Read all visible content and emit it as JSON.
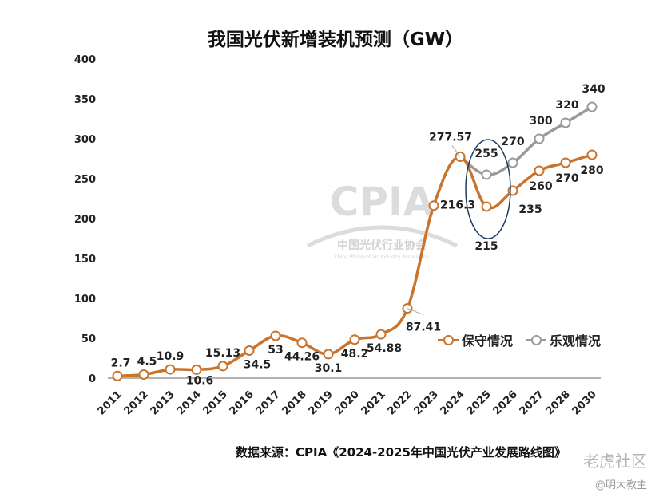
{
  "title": "我国光伏新增装机预测（GW）",
  "source": "数据来源：CPIA《2024-2025年中国光伏产业发展路线图》",
  "watermark": {
    "brand": "CPIA",
    "org": "中国光伏行业协会",
    "org_en": "China Photovoltaic Industry Association",
    "site": "老虎社区",
    "user": "@明大教主"
  },
  "colors": {
    "conservative": "#c8742d",
    "optimistic": "#9a9a9a",
    "highlight": "#1f3a5f"
  },
  "chart_data": {
    "type": "line",
    "title": "我国光伏新增装机预测（GW）",
    "categories": [
      "2011",
      "2012",
      "2013",
      "2014",
      "2015",
      "2016",
      "2017",
      "2018",
      "2019",
      "2020",
      "2021",
      "2022",
      "2023",
      "2024",
      "2025",
      "2026",
      "2027",
      "2028",
      "2030"
    ],
    "ylim": [
      0,
      400
    ],
    "yticks": [
      0,
      50,
      100,
      150,
      200,
      250,
      300,
      350,
      400
    ],
    "grid": false,
    "legend_position": "right",
    "series": [
      {
        "name": "保守情况",
        "values": [
          2.7,
          4.5,
          10.9,
          10.6,
          15.13,
          34.5,
          53,
          44.26,
          30.1,
          48.2,
          54.88,
          87.41,
          216.3,
          277.57,
          215,
          235,
          260,
          270,
          280
        ],
        "labels": [
          "2.7",
          "4.5",
          "10.9",
          "10.6",
          "15.13",
          "34.5",
          "53",
          "44.26",
          "30.1",
          "48.2",
          "54.88",
          "87.41",
          "216.3",
          "277.57",
          "215",
          "235",
          "260",
          "270",
          "280"
        ]
      },
      {
        "name": "乐观情况",
        "x": [
          "2024",
          "2025",
          "2026",
          "2027",
          "2028",
          "2030"
        ],
        "values": [
          277.57,
          255,
          270,
          300,
          320,
          340
        ],
        "labels": [
          "255",
          "270",
          "300",
          "320",
          "340"
        ]
      }
    ]
  }
}
